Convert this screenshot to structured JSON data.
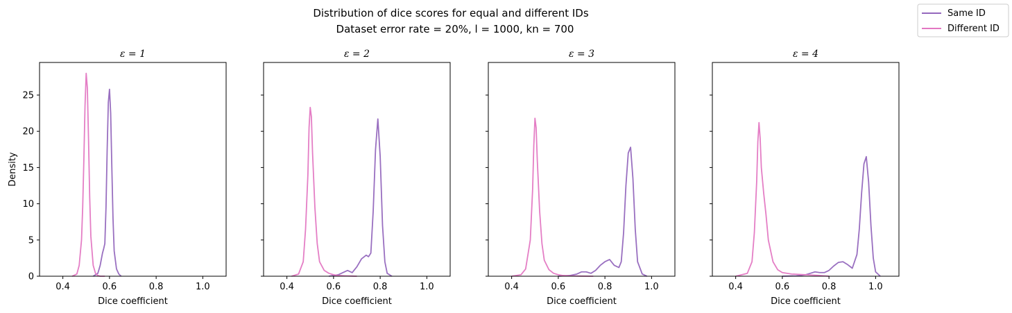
{
  "chart_data": {
    "type": "line",
    "title": "Distribution of dice scores for equal and different IDs",
    "subtitle": "Dataset error rate = 20%,    l = 1000,    kn = 700",
    "xlabel": "Dice coefficient",
    "ylabel": "Density",
    "legend": {
      "position": "top-right",
      "entries": [
        {
          "label": "Same ID",
          "color": "#9467bd"
        },
        {
          "label": "Different ID",
          "color": "#e377c2"
        }
      ]
    },
    "xlim": [
      0.3,
      1.1
    ],
    "ylim": [
      0,
      29.5
    ],
    "x_ticks": [
      "0.4",
      "0.6",
      "0.8",
      "1.0"
    ],
    "y_ticks": [
      "0",
      "5",
      "10",
      "15",
      "20",
      "25"
    ],
    "grid": false,
    "sharey": true,
    "panels": [
      {
        "title": "ε = 1",
        "series": [
          {
            "name": "Same ID",
            "color": "#9467bd",
            "x": [
              0.53,
              0.55,
              0.56,
              0.57,
              0.575,
              0.58,
              0.585,
              0.59,
              0.595,
              0.6,
              0.605,
              0.61,
              0.615,
              0.62,
              0.63,
              0.64,
              0.65
            ],
            "y": [
              0,
              0.4,
              1.5,
              3.2,
              3.8,
              4.5,
              9.5,
              17.5,
              24.0,
              25.8,
              22.5,
              15.0,
              8.0,
              3.5,
              1.0,
              0.3,
              0
            ]
          },
          {
            "name": "Different ID",
            "color": "#e377c2",
            "x": [
              0.44,
              0.46,
              0.47,
              0.48,
              0.485,
              0.49,
              0.495,
              0.5,
              0.505,
              0.51,
              0.515,
              0.52,
              0.53,
              0.54,
              0.55,
              0.56,
              0.58
            ],
            "y": [
              0,
              0.3,
              1.5,
              5.0,
              9.5,
              16.0,
              23.5,
              28.0,
              26.0,
              19.0,
              11.0,
              5.5,
              1.5,
              0.4,
              0.1,
              0,
              0
            ]
          }
        ]
      },
      {
        "title": "ε = 2",
        "series": [
          {
            "name": "Same ID",
            "color": "#9467bd",
            "x": [
              0.58,
              0.62,
              0.64,
              0.66,
              0.68,
              0.7,
              0.72,
              0.74,
              0.75,
              0.76,
              0.77,
              0.78,
              0.79,
              0.8,
              0.81,
              0.82,
              0.83,
              0.85
            ],
            "y": [
              0,
              0.2,
              0.5,
              0.8,
              0.5,
              1.3,
              2.4,
              2.9,
              2.7,
              3.2,
              9.0,
              17.5,
              21.7,
              16.5,
              7.0,
              2.0,
              0.4,
              0
            ]
          },
          {
            "name": "Different ID",
            "color": "#e377c2",
            "x": [
              0.42,
              0.45,
              0.47,
              0.48,
              0.49,
              0.495,
              0.5,
              0.505,
              0.51,
              0.52,
              0.53,
              0.54,
              0.56,
              0.58,
              0.6,
              0.62,
              0.65,
              0.7
            ],
            "y": [
              0,
              0.3,
              2.0,
              6.5,
              14.0,
              20.5,
              23.3,
              22.0,
              17.0,
              9.5,
              4.5,
              2.0,
              0.8,
              0.4,
              0.2,
              0.1,
              0.05,
              0
            ]
          }
        ]
      },
      {
        "title": "ε = 3",
        "series": [
          {
            "name": "Same ID",
            "color": "#9467bd",
            "x": [
              0.6,
              0.65,
              0.68,
              0.7,
              0.72,
              0.74,
              0.76,
              0.78,
              0.8,
              0.82,
              0.84,
              0.86,
              0.87,
              0.88,
              0.89,
              0.9,
              0.91,
              0.92,
              0.93,
              0.94,
              0.96,
              0.98
            ],
            "y": [
              0,
              0.1,
              0.3,
              0.6,
              0.6,
              0.4,
              0.8,
              1.5,
              2.0,
              2.3,
              1.5,
              1.2,
              2.0,
              6.0,
              12.5,
              17.0,
              17.8,
              13.5,
              6.5,
              2.0,
              0.3,
              0
            ]
          },
          {
            "name": "Different ID",
            "color": "#e377c2",
            "x": [
              0.4,
              0.44,
              0.46,
              0.48,
              0.49,
              0.495,
              0.5,
              0.505,
              0.51,
              0.52,
              0.53,
              0.54,
              0.56,
              0.58,
              0.6,
              0.62,
              0.65,
              0.7,
              0.75
            ],
            "y": [
              0,
              0.2,
              1.0,
              5.0,
              12.0,
              18.0,
              21.8,
              20.5,
              16.0,
              9.0,
              4.5,
              2.2,
              0.9,
              0.4,
              0.2,
              0.1,
              0.05,
              0.02,
              0
            ]
          }
        ]
      },
      {
        "title": "ε = 4",
        "series": [
          {
            "name": "Same ID",
            "color": "#9467bd",
            "x": [
              0.6,
              0.66,
              0.7,
              0.72,
              0.74,
              0.76,
              0.78,
              0.8,
              0.82,
              0.84,
              0.86,
              0.88,
              0.9,
              0.92,
              0.93,
              0.94,
              0.95,
              0.96,
              0.97,
              0.98,
              0.99,
              1.0,
              1.02
            ],
            "y": [
              0,
              0.05,
              0.2,
              0.4,
              0.6,
              0.5,
              0.5,
              0.8,
              1.4,
              1.9,
              2.0,
              1.6,
              1.1,
              3.0,
              6.5,
              11.5,
              15.5,
              16.5,
              13.0,
              7.0,
              2.5,
              0.6,
              0
            ]
          },
          {
            "name": "Different ID",
            "color": "#e377c2",
            "x": [
              0.4,
              0.45,
              0.47,
              0.48,
              0.49,
              0.495,
              0.5,
              0.505,
              0.51,
              0.52,
              0.53,
              0.54,
              0.56,
              0.58,
              0.6,
              0.64,
              0.7,
              0.76,
              0.8
            ],
            "y": [
              0,
              0.4,
              2.0,
              6.0,
              13.0,
              18.5,
              21.2,
              19.0,
              15.0,
              11.5,
              8.5,
              5.0,
              2.0,
              0.9,
              0.5,
              0.3,
              0.2,
              0.1,
              0
            ]
          }
        ]
      }
    ]
  }
}
